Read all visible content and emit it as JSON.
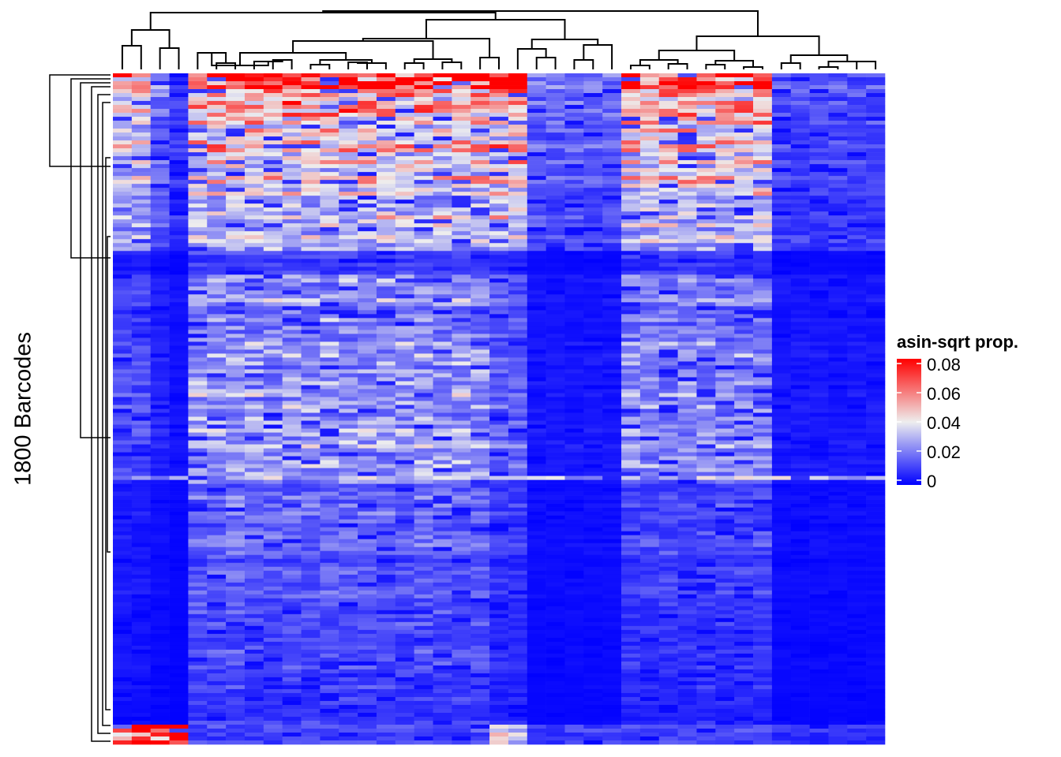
{
  "chart_data": {
    "type": "heatmap",
    "title": "",
    "ylabel": "1800 Barcodes",
    "xlabel": "",
    "n_rows": 1800,
    "n_columns": 41,
    "row_dendrogram": true,
    "column_dendrogram": true,
    "legend": {
      "title": "asin-sqrt prop.",
      "placement": "right",
      "ticks": [
        "0.08",
        "0.06",
        "0.04",
        "0.02",
        "0"
      ],
      "tick_values": [
        0.08,
        0.06,
        0.04,
        0.02,
        0
      ],
      "range": [
        0,
        0.08
      ],
      "colors": {
        "low": "#0000ff",
        "mid": "#eeeeee",
        "high": "#ff0000"
      },
      "midpoint": 0.04
    },
    "column_groups": [
      {
        "columns": [
          0,
          1
        ],
        "top": 0.035,
        "middle": 0.012,
        "lower": 0.004,
        "bottom": 0.07
      },
      {
        "columns": [
          2
        ],
        "top": 0.015,
        "middle": 0.006,
        "lower": 0.002,
        "bottom": 0.08
      },
      {
        "columns": [
          3
        ],
        "top": 0.005,
        "middle": 0.003,
        "lower": 0.001,
        "bottom": 0.08
      },
      {
        "columns": [
          4,
          5,
          6,
          7,
          8,
          9,
          10,
          11,
          12,
          13,
          14,
          15,
          16,
          17,
          18,
          19
        ],
        "top": 0.045,
        "middle": 0.025,
        "lower": 0.014,
        "bottom": 0.012
      },
      {
        "columns": [
          20,
          21
        ],
        "top": 0.05,
        "middle": 0.015,
        "lower": 0.008,
        "bottom": 0.04
      },
      {
        "columns": [
          22,
          23,
          24,
          25,
          26
        ],
        "top": 0.012,
        "middle": 0.004,
        "lower": 0.002,
        "bottom": 0.01
      },
      {
        "columns": [
          27,
          28,
          29,
          30,
          31,
          32,
          33,
          34
        ],
        "top": 0.045,
        "middle": 0.022,
        "lower": 0.01,
        "bottom": 0.012
      },
      {
        "columns": [
          35,
          36,
          37,
          38,
          39,
          40
        ],
        "top": 0.008,
        "middle": 0.004,
        "lower": 0.002,
        "bottom": 0.008
      }
    ]
  }
}
